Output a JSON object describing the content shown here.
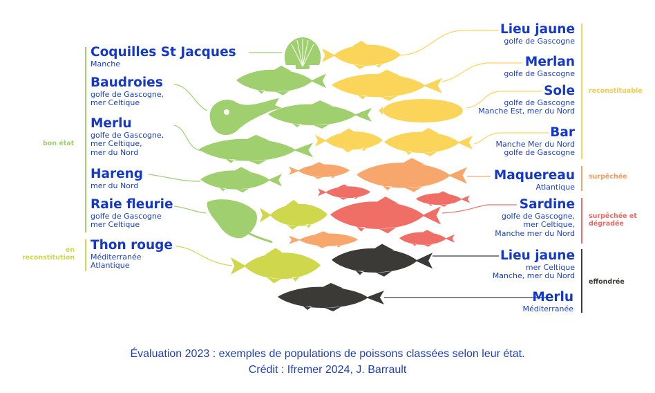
{
  "colors": {
    "bon_etat": "#9fcf6e",
    "reconstitution": "#cfd84c",
    "reconstituable": "#fbd55a",
    "surpechee": "#f7a76c",
    "surpechee_degradee": "#ef6f66",
    "effondree": "#3b3a37",
    "text": "#1438c8"
  },
  "statuses": {
    "bon_etat": "bon état",
    "reconstitution": "en reconstitution",
    "reconstituable": "reconstituable",
    "surpechee": "surpêchée",
    "surpechee_degradee": "surpêchée et dégradée",
    "effondree": "effondrée"
  },
  "left_species": [
    {
      "name": "Coquilles St Jacques",
      "location": "Manche"
    },
    {
      "name": "Baudroies",
      "location": "golfe de Gascogne,\nmer Celtique"
    },
    {
      "name": "Merlu",
      "location": "golfe de Gascogne,\nmer Celtique,\nmer du Nord"
    },
    {
      "name": "Hareng",
      "location": "mer du Nord"
    },
    {
      "name": "Raie fleurie",
      "location": "golfe de Gascogne\nmer Celtique"
    },
    {
      "name": "Thon rouge",
      "location": "Méditerranée\nAtlantique"
    }
  ],
  "right_species": [
    {
      "name": "Lieu jaune",
      "location": "golfe de Gascogne"
    },
    {
      "name": "Merlan",
      "location": "golfe de Gascogne"
    },
    {
      "name": "Sole",
      "location": "golfe de Gascogne\nManche Est, mer du Nord"
    },
    {
      "name": "Bar",
      "location": "Manche Mer du Nord\ngolfe de Gascogne"
    },
    {
      "name": "Maquereau",
      "location": "Atlantique"
    },
    {
      "name": "Sardine",
      "location": "golfe de Gascogne,\nmer Celtique,\nManche mer du Nord"
    },
    {
      "name": "Lieu jaune",
      "location": "mer Celtique\nManche, mer du Nord"
    },
    {
      "name": "Merlu",
      "location": "Méditerranée"
    }
  ],
  "caption": {
    "line1": "Évaluation 2023 : exemples de populations de poissons classées selon leur état.",
    "line2": "Crédit : Ifremer 2024, J. Barrault"
  },
  "icons": {
    "fish": "fish-icon",
    "scallop": "scallop-icon",
    "monkfish": "monkfish-icon",
    "ray": "ray-icon"
  }
}
